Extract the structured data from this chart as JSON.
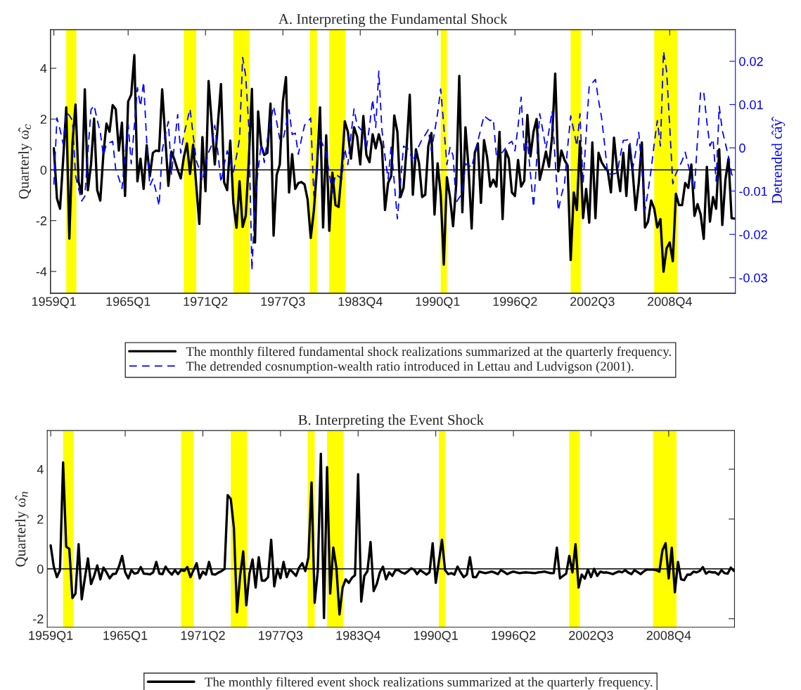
{
  "chart_data": [
    {
      "type": "line",
      "title": "A. Interpreting the Fundamental Shock",
      "ylabel": "Quarterly ω̂$_{c}$",
      "y2label": "Detrended ĉâŷ",
      "categories": [
        "1959Q1",
        null,
        null,
        null,
        null,
        null,
        null,
        null,
        null,
        null,
        null,
        null,
        null,
        null,
        null,
        null,
        null,
        null,
        null,
        null,
        null,
        null,
        null,
        null,
        "1965Q1",
        null,
        null,
        null,
        null,
        null,
        null,
        null,
        null,
        null,
        null,
        null,
        null,
        null,
        null,
        null,
        null,
        null,
        null,
        null,
        null,
        null,
        null,
        null,
        null,
        "1971Q2",
        null,
        null,
        null,
        null,
        null,
        null,
        null,
        null,
        null,
        null,
        null,
        null,
        null,
        null,
        null,
        null,
        null,
        null,
        null,
        null,
        null,
        null,
        null,
        null,
        "1977Q3",
        null,
        null,
        null,
        null,
        null,
        null,
        null,
        null,
        null,
        null,
        null,
        null,
        null,
        null,
        null,
        null,
        null,
        null,
        null,
        null,
        null,
        null,
        null,
        null,
        "1983Q4",
        null,
        null,
        null,
        null,
        null,
        null,
        null,
        null,
        null,
        null,
        null,
        null,
        null,
        null,
        null,
        null,
        null,
        null,
        null,
        null,
        null,
        null,
        null,
        null,
        "1990Q1",
        null,
        null,
        null,
        null,
        null,
        null,
        null,
        null,
        null,
        null,
        null,
        null,
        null,
        null,
        null,
        null,
        null,
        null,
        null,
        null,
        null,
        null,
        null,
        null,
        "1996Q2",
        null,
        null,
        null,
        null,
        null,
        null,
        null,
        null,
        null,
        null,
        null,
        null,
        null,
        null,
        null,
        null,
        null,
        null,
        null,
        null,
        null,
        null,
        null,
        null,
        "2002Q3",
        null,
        null,
        null,
        null,
        null,
        null,
        null,
        null,
        null,
        null,
        null,
        null,
        null,
        null,
        null,
        null,
        null,
        null,
        null,
        null,
        null,
        null,
        null,
        null,
        "2008Q4",
        null,
        null,
        null,
        null,
        null,
        null,
        null,
        null,
        null,
        null,
        null,
        null,
        null,
        null,
        null,
        null,
        null,
        null,
        null,
        null,
        null
      ],
      "ylim": [
        -4.86,
        5.52
      ],
      "yticks": [
        -4,
        -2,
        0,
        2,
        4
      ],
      "y2lim": [
        -0.0336,
        0.0273
      ],
      "y2ticks": [
        -0.03,
        -0.02,
        -0.01,
        0,
        0.01,
        0.02
      ],
      "legend": "bottom",
      "ref_lines": [
        {
          "axis": "y",
          "value": 0,
          "color": "#000000",
          "line_style": "solid"
        }
      ],
      "series": [
        {
          "name": "The monthly filtered fundamental shock realizations summarized at the quarterly frequency.",
          "color": "#000000",
          "line_style": "solid",
          "values": [
            0.85,
            -1.12,
            -1.53,
            0.4,
            2.46,
            -2.71,
            1.04,
            2.57,
            -0.48,
            -0.94,
            3.17,
            -0.8,
            0.21,
            2.02,
            -0.8,
            -1.21,
            0.62,
            1.82,
            1.5,
            2.55,
            2.39,
            0.76,
            1.86,
            -1.03,
            2.69,
            2.96,
            4.52,
            -0.45,
            0.44,
            -0.75,
            0.97,
            -0.25,
            0.67,
            0.76,
            0.74,
            3.17,
            1.27,
            -0.63,
            0.72,
            0.39,
            0.0,
            -0.34,
            0.5,
            1.04,
            -0.16,
            0.99,
            -0.6,
            -2.13,
            1.29,
            -0.84,
            3.5,
            1.86,
            0.21,
            1.8,
            3.38,
            -0.48,
            -0.8,
            1.15,
            -1.3,
            -2.28,
            -0.45,
            -2.25,
            -1.81,
            0.39,
            3.19,
            -2.86,
            2.3,
            0.94,
            0.58,
            0.67,
            2.61,
            -2.59,
            -0.2,
            0.21,
            2.69,
            3.65,
            -0.89,
            0.62,
            -0.75,
            -0.52,
            -0.48,
            -0.57,
            -1.17,
            -2.68,
            -1.62,
            0.03,
            2.46,
            -2.27,
            1.36,
            -2.4,
            -0.11,
            -1.39,
            -1.46,
            -0.02,
            1.91,
            1.5,
            0.44,
            1.68,
            1.31,
            0.21,
            2.12,
            0.58,
            0.3,
            1.4,
            0.85,
            1.4,
            0.94,
            -1.58,
            -0.52,
            -0.25,
            2.14,
            1.5,
            -1.07,
            -0.71,
            0.9,
            2.96,
            -0.98,
            0.81,
            0.26,
            -1.07,
            -0.98,
            0.94,
            1.45,
            -1.76,
            0.26,
            -0.98,
            -3.73,
            -0.29,
            -1.07,
            -2.22,
            -0.61,
            3.7,
            -1.67,
            1.68,
            0.07,
            -2.31,
            0.67,
            1.04,
            -1.3,
            1.17,
            0.49,
            -0.66,
            -0.39,
            -0.66,
            1.5,
            -1.94,
            0.76,
            0.44,
            -0.89,
            -1.03,
            0.39,
            -0.66,
            -0.43,
            2.16,
            0.53,
            1.5,
            2.0,
            -0.39,
            0.12,
            0.72,
            0.12,
            1.31,
            3.79,
            -0.06,
            0.76,
            0.39,
            0.17,
            -3.55,
            -0.89,
            -1.58,
            1.13,
            -1.9,
            -0.75,
            -2.08,
            1.08,
            -1.9,
            0.67,
            0.3,
            0.1,
            -0.05,
            -0.89,
            1.27,
            0.03,
            -0.84,
            0.67,
            -1.03,
            0.97,
            -0.02,
            -1.58,
            -0.52,
            1.08,
            -2.27,
            -2.04,
            -1.21,
            -1.53,
            -2.27,
            -1.94,
            -4.01,
            -3.09,
            -2.86,
            -3.6,
            -0.94,
            -1.39,
            -1.39,
            -0.52,
            -0.71,
            0.21,
            -1.81,
            -1.35,
            -1.76,
            -2.72,
            0.12,
            -2.04,
            -1.07,
            -1.53,
            0.81,
            -2.17,
            -0.39,
            0.44,
            -1.9,
            -1.92
          ]
        },
        {
          "name": "The detrended cosnumption-wealth ratio introduced in Lettau and Ludvigson (2001).",
          "color": "#0000ff",
          "line_style": "dashed",
          "axis": "y2",
          "values": [
            -0.0085,
            0.0069,
            0.0042,
            0.0009,
            0.0082,
            0.0075,
            0.0063,
            -0.0064,
            -0.0095,
            -0.0123,
            -0.0112,
            -0.001,
            0.0088,
            0.0098,
            0.0065,
            0.0036,
            -0.0018,
            0.0009,
            0.0012,
            0.0015,
            -0.005,
            -0.007,
            -0.0094,
            -0.002,
            0.0055,
            -0.0037,
            0.005,
            0.0139,
            0.0096,
            0.0152,
            0.0015,
            -0.0088,
            -0.0072,
            -0.01,
            -0.0134,
            -0.0007,
            0.003,
            0.0061,
            -0.0061,
            0.001,
            0.0077,
            -0.0012,
            0.003,
            0.006,
            0.009,
            0.003,
            -0.0029,
            -0.005,
            -0.0077,
            -0.004,
            -0.001,
            0.0006,
            0.0052,
            -0.001,
            -0.008,
            -0.004,
            -0.0007,
            -0.003,
            -0.0056,
            -0.002,
            0.002,
            0.0209,
            0.0166,
            0.0047,
            -0.0283,
            -0.0123,
            -0.005,
            0.0009,
            -0.0034,
            0.002,
            0.006,
            0.0096,
            0.006,
            0.002,
            0.0017,
            0.005,
            0.0088,
            0.0031,
            0.0034,
            -0.0015,
            0.002,
            0.0052,
            0.006,
            0.0069,
            -0.011,
            -0.004,
            0.0023,
            0.0005,
            -0.0012,
            -0.006,
            -0.0104,
            -0.0061,
            -0.0066,
            -0.0072,
            -0.0002,
            -0.0039,
            0.003,
            0.009,
            0.0052,
            0.0044,
            0.0036,
            -0.0002,
            0.005,
            0.0112,
            0.0047,
            0.0177,
            0.0042,
            -0.002,
            -0.0072,
            0.0004,
            -0.008,
            -0.0164,
            -0.008,
            0.0004,
            0.0,
            -0.0007,
            -0.0034,
            -0.001,
            0.0005,
            0.002,
            0.003,
            0.0042,
            -0.0007,
            0.0036,
            0.008,
            0.0136,
            0.005,
            -0.0039,
            0.0001,
            -0.0018,
            -0.0126,
            -0.0115,
            -0.0104,
            -0.0037,
            -0.004,
            -0.0045,
            -0.0015,
            0.0015,
            0.0045,
            0.0074,
            0.0068,
            0.0063,
            0.0066,
            -0.0018,
            -0.0014,
            -0.001,
            0.0,
            0.001,
            0.0015,
            -0.0007,
            0.005,
            0.0117,
            -0.001,
            0.0015,
            -0.006,
            -0.0137,
            -0.003,
            0.0079,
            0.004,
            -0.0002,
            0.004,
            0.0085,
            -0.003,
            -0.0145,
            -0.011,
            -0.0083,
            0.0,
            0.0074,
            0.004,
            0.0004,
            0.0079,
            -0.0083,
            0.003,
            0.0144,
            0.015,
            0.0158,
            0.011,
            0.0069,
            0.0005,
            -0.0061,
            -0.006,
            -0.006,
            -0.0058,
            -0.002,
            0.0017,
            0.0018,
            0.002,
            -0.005,
            -0.001,
            0.0036,
            -0.005,
            -0.0145,
            -0.01,
            -0.005,
            0.001,
            0.0063,
            0.0004,
            0.0223,
            0.0177,
            0.005,
            -0.0083,
            -0.006,
            -0.0045,
            -0.003,
            -0.001,
            -0.004,
            -0.007,
            -0.0094,
            0.002,
            0.0131,
            0.0128,
            0.006,
            0.0004,
            0.002,
            -0.0077,
            0.0096,
            0.004,
            0.001,
            -0.0021,
            -0.0061,
            -0.007
          ]
        }
      ]
    },
    {
      "type": "line",
      "title": "B. Interpreting the Event Shock",
      "ylabel": "Quarterly ω̂$_{n}$",
      "categories": [
        "1959Q1",
        null,
        null,
        null,
        null,
        null,
        null,
        null,
        null,
        null,
        null,
        null,
        null,
        null,
        null,
        null,
        null,
        null,
        null,
        null,
        null,
        null,
        null,
        null,
        "1965Q1",
        null,
        null,
        null,
        null,
        null,
        null,
        null,
        null,
        null,
        null,
        null,
        null,
        null,
        null,
        null,
        null,
        null,
        null,
        null,
        null,
        null,
        null,
        null,
        null,
        "1971Q2",
        null,
        null,
        null,
        null,
        null,
        null,
        null,
        null,
        null,
        null,
        null,
        null,
        null,
        null,
        null,
        null,
        null,
        null,
        null,
        null,
        null,
        null,
        null,
        null,
        "1977Q3",
        null,
        null,
        null,
        null,
        null,
        null,
        null,
        null,
        null,
        null,
        null,
        null,
        null,
        null,
        null,
        null,
        null,
        null,
        null,
        null,
        null,
        null,
        null,
        null,
        "1983Q4",
        null,
        null,
        null,
        null,
        null,
        null,
        null,
        null,
        null,
        null,
        null,
        null,
        null,
        null,
        null,
        null,
        null,
        null,
        null,
        null,
        null,
        null,
        null,
        null,
        "1990Q1",
        null,
        null,
        null,
        null,
        null,
        null,
        null,
        null,
        null,
        null,
        null,
        null,
        null,
        null,
        null,
        null,
        null,
        null,
        null,
        null,
        null,
        null,
        null,
        null,
        "1996Q2",
        null,
        null,
        null,
        null,
        null,
        null,
        null,
        null,
        null,
        null,
        null,
        null,
        null,
        null,
        null,
        null,
        null,
        null,
        null,
        null,
        null,
        null,
        null,
        null,
        "2002Q3",
        null,
        null,
        null,
        null,
        null,
        null,
        null,
        null,
        null,
        null,
        null,
        null,
        null,
        null,
        null,
        null,
        null,
        null,
        null,
        null,
        null,
        null,
        null,
        null,
        "2008Q4",
        null,
        null,
        null,
        null,
        null,
        null,
        null,
        null,
        null,
        null,
        null,
        null,
        null,
        null,
        null,
        null,
        null,
        null,
        null,
        null,
        null
      ],
      "ylim": [
        -2.34,
        5.55
      ],
      "yticks": [
        -2,
        0,
        2,
        4
      ],
      "legend": "bottom",
      "ref_lines": [
        {
          "axis": "y",
          "value": 0,
          "color": "#000000",
          "line_style": "solid"
        }
      ],
      "series": [
        {
          "name": "The monthly filtered event shock realizations summarized at the quarterly frequency.",
          "color": "#000000",
          "line_style": "solid",
          "values": [
            0.94,
            0.09,
            -0.33,
            -0.05,
            4.27,
            0.89,
            0.8,
            -1.17,
            -0.99,
            0.99,
            -1.22,
            -0.38,
            0.42,
            -0.61,
            -0.28,
            0.14,
            -0.42,
            0.05,
            -0.14,
            -0.38,
            -0.21,
            -0.19,
            0.1,
            0.52,
            -0.14,
            -0.38,
            -0.05,
            -0.19,
            -0.16,
            0.07,
            -0.19,
            -0.2,
            -0.22,
            -0.14,
            0.28,
            -0.19,
            -0.21,
            0.09,
            -0.1,
            -0.23,
            -0.05,
            -0.21,
            -0.05,
            -0.08,
            0.07,
            -0.33,
            -0.05,
            0.23,
            -0.38,
            -0.11,
            -0.23,
            0.28,
            -0.21,
            -0.23,
            -0.15,
            -0.09,
            0.0,
            2.96,
            2.8,
            1.64,
            -1.74,
            -0.28,
            0.7,
            -1.46,
            -0.19,
            0.38,
            -0.75,
            0.47,
            -0.47,
            -0.47,
            -0.33,
            1.17,
            -0.7,
            0.0,
            -0.38,
            0.28,
            -0.33,
            -0.02,
            -0.14,
            -0.28,
            0.05,
            0.23,
            -0.09,
            0.47,
            3.47,
            -1.36,
            -0.09,
            4.62,
            -1.97,
            4.08,
            -0.99,
            0.86,
            0.05,
            -1.83,
            -0.75,
            -0.42,
            -0.56,
            -0.36,
            -0.25,
            3.8,
            -1.31,
            -0.28,
            -0.09,
            1.08,
            -0.89,
            -0.61,
            -0.14,
            0.09,
            -0.42,
            -0.14,
            -0.28,
            -0.05,
            -0.05,
            -0.14,
            -0.19,
            -0.1,
            0.02,
            -0.02,
            -0.21,
            -0.05,
            -0.14,
            -0.23,
            -0.14,
            1.03,
            -0.56,
            0.3,
            1.17,
            -0.05,
            -0.21,
            -0.17,
            -0.23,
            0.09,
            -0.14,
            -0.33,
            -0.23,
            0.47,
            -0.33,
            -0.33,
            -0.11,
            -0.14,
            -0.17,
            -0.14,
            -0.11,
            -0.15,
            -0.21,
            -0.05,
            -0.12,
            -0.21,
            -0.15,
            -0.11,
            -0.14,
            -0.17,
            -0.15,
            -0.14,
            -0.15,
            -0.16,
            -0.17,
            -0.14,
            -0.13,
            -0.11,
            -0.14,
            -0.17,
            -0.17,
            0.85,
            -0.38,
            -0.28,
            -0.19,
            0.52,
            -0.14,
            0.99,
            -0.75,
            -0.23,
            -0.39,
            -0.02,
            -0.33,
            0.0,
            -0.28,
            -0.11,
            -0.15,
            -0.14,
            -0.17,
            -0.21,
            -0.15,
            -0.1,
            -0.14,
            -0.05,
            -0.15,
            -0.21,
            -0.05,
            -0.13,
            -0.21,
            -0.1,
            -0.02,
            -0.03,
            -0.03,
            -0.05,
            -0.11,
            0.75,
            1.03,
            -0.38,
            0.85,
            -0.94,
            0.28,
            -0.42,
            -0.45,
            -0.23,
            -0.23,
            -0.11,
            -0.14,
            -0.08,
            0.07,
            -0.19,
            -0.11,
            -0.14,
            -0.14,
            -0.23,
            -0.05,
            -0.17,
            -0.19,
            0.05,
            -0.08
          ]
        }
      ]
    }
  ]
}
